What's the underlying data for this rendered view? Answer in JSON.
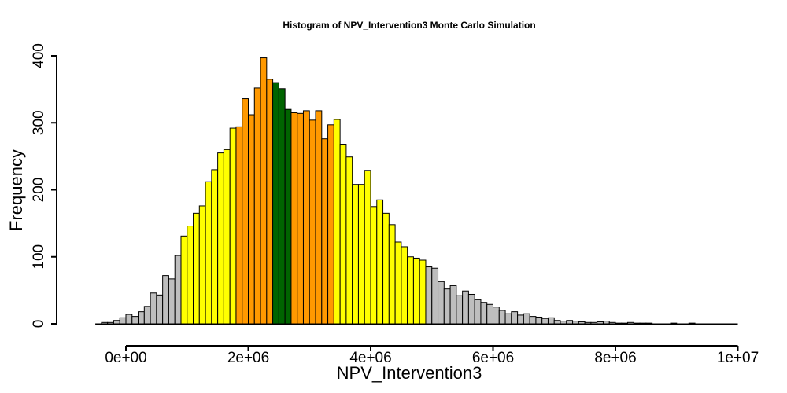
{
  "chart_data": {
    "type": "bar",
    "title": "Histogram of  NPV_Intervention3  Monte Carlo Simulation",
    "xlabel": "NPV_Intervention3",
    "ylabel": "Frequency",
    "xlim": [
      -500000,
      10000000
    ],
    "ylim": [
      0,
      400
    ],
    "x_ticks": [
      0,
      2000000,
      4000000,
      6000000,
      8000000,
      10000000
    ],
    "x_tick_labels": [
      "0e+00",
      "2e+06",
      "4e+06",
      "6e+06",
      "8e+06",
      "1e+07"
    ],
    "y_ticks": [
      0,
      100,
      200,
      300,
      400
    ],
    "y_tick_labels": [
      "0",
      "100",
      "200",
      "300",
      "400"
    ],
    "bin_start": -400000,
    "bin_width": 100000,
    "counts": [
      2,
      2,
      5,
      9,
      14,
      11,
      18,
      26,
      46,
      43,
      72,
      67,
      102,
      131,
      146,
      165,
      176,
      212,
      230,
      255,
      260,
      292,
      294,
      336,
      312,
      352,
      397,
      365,
      360,
      351,
      320,
      315,
      314,
      318,
      304,
      318,
      276,
      297,
      305,
      268,
      249,
      208,
      208,
      229,
      175,
      185,
      165,
      148,
      122,
      115,
      100,
      98,
      95,
      85,
      83,
      63,
      52,
      57,
      42,
      49,
      44,
      36,
      32,
      29,
      25,
      20,
      15,
      18,
      13,
      15,
      11,
      10,
      8,
      9,
      5,
      4,
      5,
      4,
      3,
      2,
      2,
      3,
      4,
      2,
      1,
      1,
      2,
      1,
      1,
      1,
      0,
      0,
      0,
      1,
      0,
      0,
      1,
      0,
      0,
      0,
      0,
      0,
      0,
      0,
      0,
      0,
      0,
      0,
      0,
      0,
      0,
      0,
      0,
      0
    ],
    "bar_colors": [
      {
        "from": -400000,
        "to": 900000,
        "color": "#BEBEBE"
      },
      {
        "from": 900000,
        "to": 1800000,
        "color": "#FFFF00"
      },
      {
        "from": 1800000,
        "to": 2400000,
        "color": "#FF9900"
      },
      {
        "from": 2400000,
        "to": 2700000,
        "color": "#006400"
      },
      {
        "from": 2700000,
        "to": 3400000,
        "color": "#FF9900"
      },
      {
        "from": 3400000,
        "to": 4900000,
        "color": "#FFFF00"
      },
      {
        "from": 4900000,
        "to": 10000000,
        "color": "#BEBEBE"
      }
    ],
    "grid": false,
    "legend": "none"
  }
}
